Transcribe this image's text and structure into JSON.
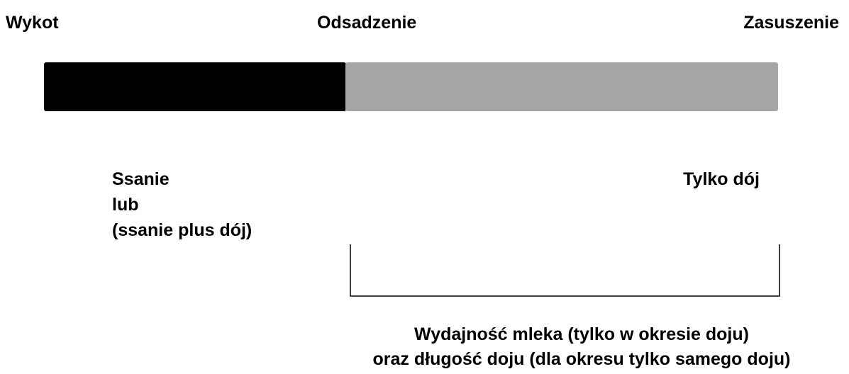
{
  "stages": {
    "start": "Wykot",
    "middle": "Odsadzenie",
    "end": "Zasuszenie"
  },
  "phases": {
    "first": [
      "Ssanie",
      "lub",
      "(ssanie plus dój)"
    ],
    "second": "Tylko dój"
  },
  "note": [
    "Wydajność mleka (tylko w okresie doju)",
    "oraz długość doju (dla okresu tylko samego doju)"
  ]
}
